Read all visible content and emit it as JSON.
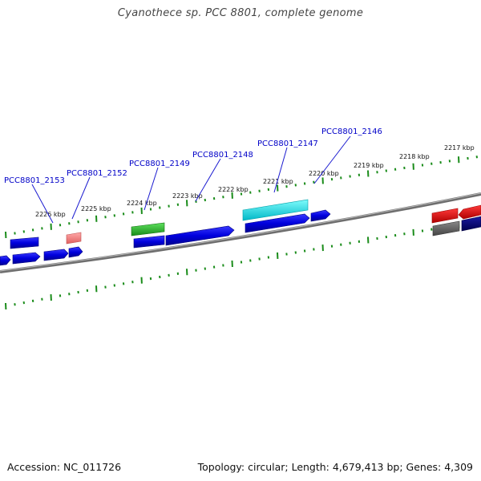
{
  "title": "Cyanothece sp. PCC 8801, complete genome",
  "footer": {
    "accession": "Accession: NC_011726",
    "summary": "Topology: circular; Length: 4,679,413 bp; Genes: 4,309"
  },
  "scale_labels": [
    "2226 kbp",
    "2225 kbp",
    "2224 kbp",
    "2223 kbp",
    "2222 kbp",
    "2221 kbp",
    "2220 kbp",
    "2219 kbp",
    "2218 kbp",
    "2217 kbp"
  ],
  "gene_labels": [
    "PCC8801_2153",
    "PCC8801_2152",
    "PCC8801_2149",
    "PCC8801_2148",
    "PCC8801_2147",
    "PCC8801_2146"
  ],
  "colors": {
    "backbone": "#7a7a7a",
    "ticks": "#1a8c1a",
    "gene_blue": "#0000dd",
    "gene_navy": "#00007a",
    "gene_green": "#2db82d",
    "gene_cyan": "#00e5e5",
    "gene_pink": "#f08080",
    "gene_red": "#e00000",
    "gene_gray": "#555555",
    "label": "#0000c8"
  }
}
